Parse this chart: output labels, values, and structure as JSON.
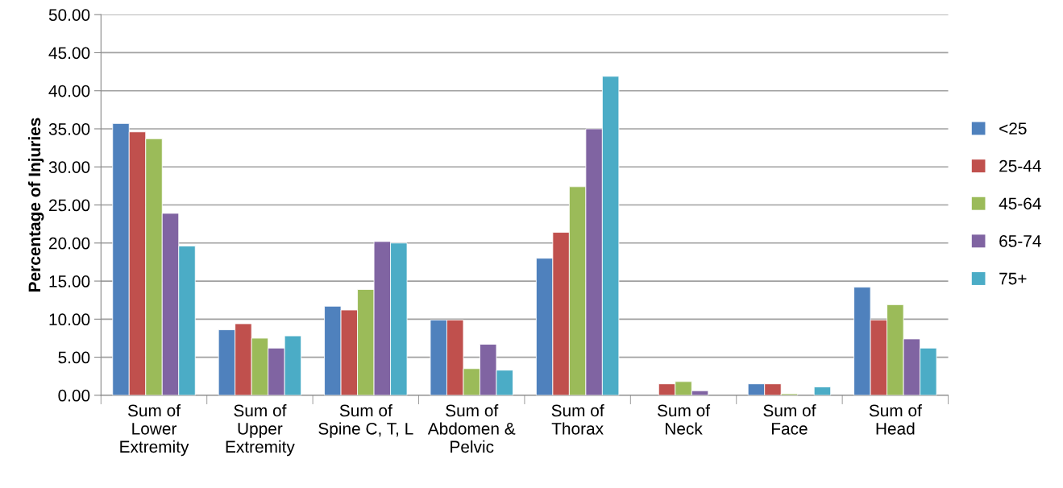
{
  "chart_data": {
    "type": "bar",
    "ylabel": "Percentage of Injuries",
    "categories": [
      "Sum of\nLower\nExtremity",
      "Sum of\nUpper\nExtremity",
      "Sum of\nSpine C, T, L",
      "Sum of\nAbdomen &\nPelvic",
      "Sum of\nThorax",
      "Sum of\nNeck",
      "Sum of\nFace",
      "Sum of\nHead"
    ],
    "series": [
      {
        "name": "<25",
        "color": "#4f81bd",
        "values": [
          35.7,
          8.6,
          11.7,
          9.9,
          18.0,
          0,
          1.5,
          14.2
        ]
      },
      {
        "name": "25-44",
        "color": "#c0504d",
        "values": [
          34.6,
          9.4,
          11.2,
          9.9,
          21.4,
          1.5,
          1.5,
          9.9
        ]
      },
      {
        "name": "45-64",
        "color": "#9bbb59",
        "values": [
          33.7,
          7.5,
          13.9,
          3.5,
          27.4,
          1.8,
          0.2,
          11.9
        ]
      },
      {
        "name": "65-74",
        "color": "#8064a2",
        "values": [
          23.9,
          6.2,
          20.2,
          6.7,
          35.0,
          0.6,
          0,
          7.4
        ]
      },
      {
        "name": "75+",
        "color": "#4bacc6",
        "values": [
          19.6,
          7.8,
          20.0,
          3.3,
          41.9,
          0,
          1.1,
          6.2
        ]
      }
    ],
    "ylim": [
      0,
      50
    ],
    "yticks": [
      {
        "value": 0,
        "label": "0.00"
      },
      {
        "value": 5,
        "label": "5.00"
      },
      {
        "value": 10,
        "label": "10.00"
      },
      {
        "value": 15,
        "label": "15.00"
      },
      {
        "value": 20,
        "label": "20.00"
      },
      {
        "value": 25,
        "label": "25.00"
      },
      {
        "value": 30,
        "label": "30.00"
      },
      {
        "value": 35,
        "label": "35.00"
      },
      {
        "value": 40,
        "label": "40.00"
      },
      {
        "value": 45,
        "label": "45.00"
      },
      {
        "value": 50,
        "label": "50.00"
      }
    ],
    "grid": "y",
    "legend": "right"
  }
}
